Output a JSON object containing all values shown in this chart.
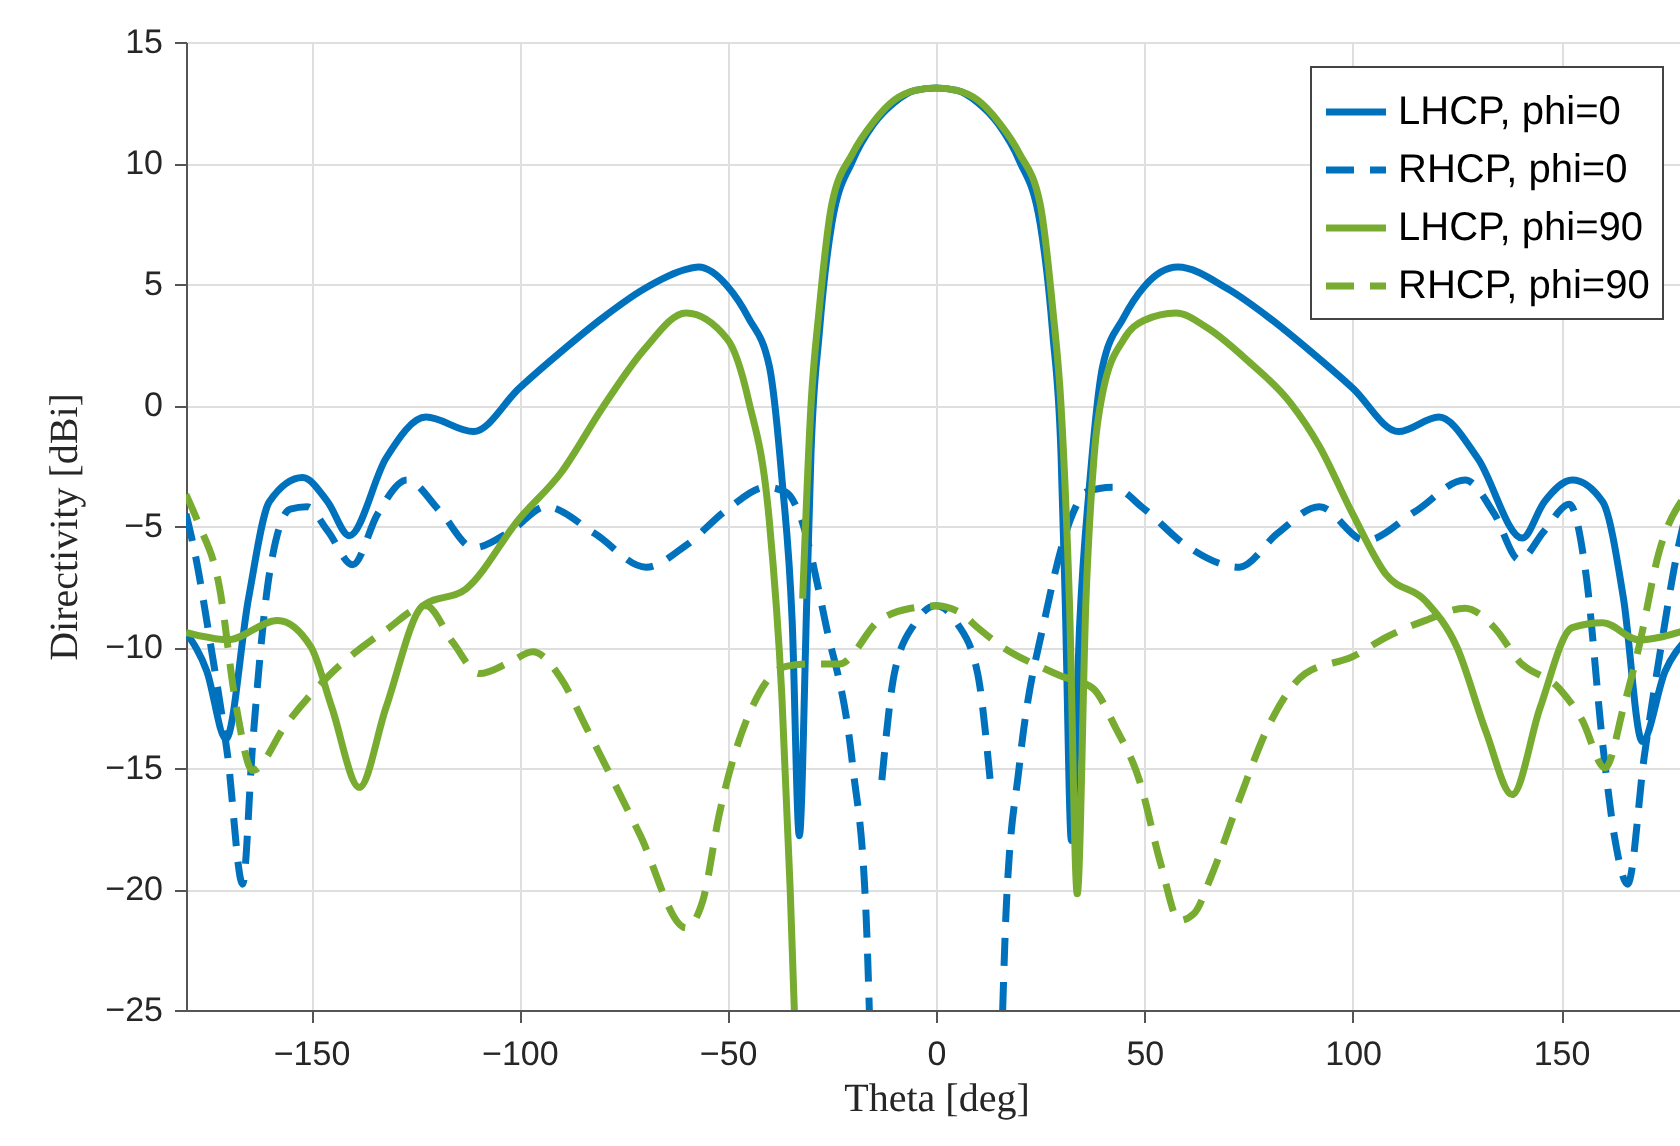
{
  "chart_data": {
    "type": "line",
    "xlabel": "Theta [deg]",
    "ylabel": "Directivity [dBi]",
    "xlim": [
      -180,
      180
    ],
    "xticks": [
      -150,
      -100,
      -50,
      0,
      50,
      100,
      150
    ],
    "ylim": [
      -25,
      15
    ],
    "yticks": [
      -25,
      -20,
      -15,
      -10,
      -5,
      0,
      5,
      10,
      15
    ],
    "grid": true,
    "legend": "top right",
    "series": [
      {
        "name": "LHCP, phi=0",
        "color": "#0072bd",
        "line_style": "solid",
        "x": [
          -180,
          -175,
          -170.4,
          -165,
          -160,
          -152,
          -146,
          -140.8,
          -132,
          -122.4,
          -111,
          -100,
          -90,
          -80,
          -70,
          -60,
          -57,
          -50,
          -45,
          -40,
          -37,
          -34.5,
          -32.8,
          -31,
          -30,
          -28,
          -25,
          -20,
          -15,
          -10,
          -5,
          0,
          5,
          10,
          15,
          20,
          25,
          28,
          30,
          31,
          32.5,
          34.5,
          37,
          40,
          45,
          50,
          58,
          70,
          80,
          90,
          100,
          111,
          120.7,
          130,
          140.7,
          146,
          152.7,
          160,
          165,
          169.5,
          175,
          180
        ],
        "values": [
          -9.4,
          -11,
          -13.8,
          -8,
          -4,
          -3.0,
          -4,
          -5.4,
          -2.2,
          -0.5,
          -1.1,
          0.7,
          2.2,
          3.6,
          4.8,
          5.6,
          5.7,
          4.9,
          3.6,
          1.6,
          -3,
          -9,
          -17.8,
          -8,
          -2,
          3,
          7.5,
          10.1,
          11.6,
          12.5,
          13,
          13.1,
          13,
          12.5,
          11.6,
          10.1,
          7.5,
          3,
          -2,
          -8,
          -18,
          -9,
          -3,
          1.6,
          3.6,
          4.9,
          5.7,
          4.8,
          3.6,
          2.2,
          0.7,
          -1.1,
          -0.5,
          -2.2,
          -5.5,
          -4,
          -3.1,
          -4,
          -8,
          -13.9,
          -11,
          -9.7
        ]
      },
      {
        "name": "RHCP, phi=0",
        "color": "#0072bd",
        "line_style": "dashed",
        "x": [
          -180,
          -178,
          -174,
          -170,
          -166.4,
          -164,
          -160,
          -155,
          -151,
          -146,
          -140,
          -134,
          -127,
          -119,
          -111,
          -102,
          -93.6,
          -82,
          -69.6,
          -60,
          -50,
          -40.8,
          -36,
          -32.8,
          -26.4,
          -20,
          -16.8,
          -16,
          -15,
          -13,
          -10,
          -5,
          0,
          5,
          10,
          13,
          15,
          16,
          16.8,
          20,
          26.4,
          32.8,
          36,
          42.4,
          50,
          60,
          72.8,
          82,
          92,
          103,
          115,
          127,
          134,
          140,
          146,
          152,
          156,
          160,
          163,
          166,
          170,
          174,
          178,
          180
        ],
        "values": [
          -4.5,
          -6,
          -10,
          -14.5,
          -19.8,
          -14,
          -7,
          -4.3,
          -4.2,
          -5.2,
          -6.6,
          -4.5,
          -3.1,
          -4.4,
          -5.9,
          -5.2,
          -4.2,
          -5.3,
          -6.7,
          -5.8,
          -4.3,
          -3.4,
          -3.6,
          -4.5,
          -9.1,
          -14.9,
          -21,
          -25,
          null,
          -15.5,
          -11.1,
          -9,
          -8.3,
          -9,
          -11.1,
          -15.5,
          null,
          -25,
          -21,
          -14.9,
          -8.6,
          -4.5,
          -3.6,
          -3.4,
          -4.3,
          -5.8,
          -6.7,
          -5.3,
          -4.2,
          -5.6,
          -4.4,
          -3.1,
          -4.5,
          -6.4,
          -5.2,
          -4.1,
          -7,
          -14,
          -18,
          -19.8,
          -14.5,
          -10,
          -6,
          -4.5
        ]
      },
      {
        "name": "LHCP, phi=90",
        "color": "#77ac30",
        "line_style": "solid",
        "x": [
          -180,
          -170,
          -158,
          -150,
          -145,
          -138.4,
          -132,
          -123.2,
          -112.8,
          -100,
          -90,
          -80,
          -70,
          -60,
          -50,
          -45,
          -40,
          -37,
          -35,
          -34,
          -33.5,
          -32,
          -30,
          -28,
          -25,
          -20,
          -15,
          -10,
          -5,
          0,
          5,
          10,
          15,
          20,
          25,
          28,
          30,
          32,
          33.9,
          36,
          38,
          40,
          45,
          50,
          57.6,
          65,
          75,
          85,
          92,
          100,
          108,
          117.5,
          125,
          132,
          138.3,
          145,
          152.7,
          160,
          168.7,
          180
        ],
        "values": [
          -9.4,
          -9.7,
          -8.9,
          -10,
          -12.5,
          -15.8,
          -12.5,
          -8.3,
          -7.6,
          -4.7,
          -2.8,
          -0.1,
          2.3,
          3.8,
          2.7,
          0.2,
          -4.8,
          -12,
          -20,
          -25,
          null,
          -8,
          0,
          4,
          8.3,
          10.4,
          11.7,
          12.6,
          13.0,
          13.1,
          13.0,
          12.6,
          11.7,
          10.4,
          8.3,
          4,
          0,
          -8,
          -20.2,
          -8,
          -2,
          0.5,
          2.7,
          3.5,
          3.8,
          3.2,
          1.8,
          0.1,
          -1.7,
          -4.5,
          -7,
          -8.1,
          -10,
          -13.5,
          -16.1,
          -12.5,
          -9.2,
          -9,
          -9.7,
          -9.3
        ]
      },
      {
        "name": "RHCP, phi=90",
        "color": "#77ac30",
        "line_style": "dashed",
        "x": [
          -180,
          -177,
          -172,
          -168,
          -164,
          -156,
          -146.4,
          -132,
          -122.4,
          -116,
          -109.6,
          -102,
          -96.8,
          -90,
          -84,
          -71.2,
          -60,
          -56,
          -52,
          -42.4,
          -36,
          -30,
          -23.2,
          -13.6,
          -6,
          0,
          6,
          10,
          16.8,
          24.8,
          30,
          37.6,
          43,
          48.8,
          54,
          58.4,
          62,
          66,
          72.8,
          80,
          88.6,
          100,
          108,
          117.5,
          127,
          134,
          140,
          149.5,
          155,
          160.6,
          165,
          168.7,
          173.5,
          180
        ],
        "values": [
          -3.7,
          -4.9,
          -7.5,
          -12.4,
          -15.1,
          -13.2,
          -11.3,
          -9.3,
          -8.3,
          -9.8,
          -11.1,
          -10.6,
          -10.2,
          -11.3,
          -13.3,
          -17.7,
          -21.6,
          -20.5,
          -16.9,
          -11.9,
          -10.8,
          -10.7,
          -10.7,
          -8.9,
          -8.4,
          -8.3,
          -8.6,
          -9.2,
          -10.1,
          -10.8,
          -11.2,
          -11.7,
          -13.3,
          -15.5,
          -19,
          -21.3,
          -21,
          -19.5,
          -16.3,
          -13.2,
          -11.1,
          -10.4,
          -9.6,
          -8.9,
          -8.4,
          -9.2,
          -10.6,
          -11.7,
          -13,
          -15.0,
          -12.5,
          -10,
          -6.1,
          -3.7
        ]
      }
    ]
  }
}
